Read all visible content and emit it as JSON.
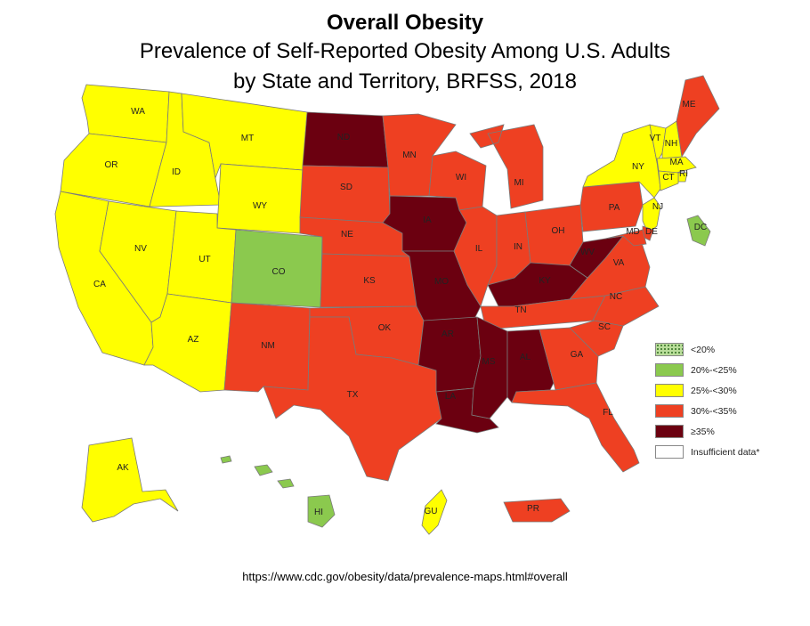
{
  "title": "Overall Obesity",
  "subtitle_line1": "Prevalence of Self-Reported Obesity Among U.S. Adults",
  "subtitle_line2": "by State and Territory, BRFSS, 2018",
  "source": "https://www.cdc.gov/obesity/data/prevalence-maps.html#overall",
  "colors": {
    "lt20": "#b9dd9a",
    "c20_25": "#8bc94e",
    "c25_30": "#ffff00",
    "c30_35": "#ee4022",
    "c35plus": "#6b0010",
    "insufficient": "#ffffff"
  },
  "legend": [
    {
      "key": "lt20",
      "label": "<20%"
    },
    {
      "key": "c20_25",
      "label": "20%-<25%"
    },
    {
      "key": "c25_30",
      "label": "25%-<30%"
    },
    {
      "key": "c30_35",
      "label": "30%-<35%"
    },
    {
      "key": "c35plus",
      "label": "≥35%"
    },
    {
      "key": "insufficient",
      "label": "Insufficient data*"
    }
  ],
  "states": {
    "WA": "25%-<30%",
    "OR": "25%-<30%",
    "CA": "25%-<30%",
    "ID": "25%-<30%",
    "NV": "25%-<30%",
    "MT": "25%-<30%",
    "WY": "25%-<30%",
    "UT": "25%-<30%",
    "AZ": "25%-<30%",
    "CO": "20%-<25%",
    "NM": "30%-<35%",
    "ND": "≥35%",
    "SD": "30%-<35%",
    "NE": "30%-<35%",
    "KS": "30%-<35%",
    "OK": "30%-<35%",
    "TX": "30%-<35%",
    "MN": "30%-<35%",
    "IA": "≥35%",
    "MO": "≥35%",
    "AR": "≥35%",
    "LA": "≥35%",
    "WI": "30%-<35%",
    "IL": "30%-<35%",
    "MI": "30%-<35%",
    "IN": "30%-<35%",
    "OH": "30%-<35%",
    "KY": "≥35%",
    "TN": "30%-<35%",
    "MS": "≥35%",
    "AL": "≥35%",
    "GA": "30%-<35%",
    "FL": "30%-<35%",
    "SC": "30%-<35%",
    "NC": "30%-<35%",
    "VA": "30%-<35%",
    "WV": "≥35%",
    "PA": "30%-<35%",
    "NY": "25%-<30%",
    "VT": "25%-<30%",
    "NH": "25%-<30%",
    "ME": "30%-<35%",
    "MA": "25%-<30%",
    "RI": "25%-<30%",
    "CT": "25%-<30%",
    "NJ": "25%-<30%",
    "DE": "30%-<35%",
    "MD": "30%-<35%",
    "DC": "20%-<25%",
    "AK": "25%-<30%",
    "HI": "20%-<25%",
    "GU": "25%-<30%",
    "PR": "30%-<35%"
  }
}
